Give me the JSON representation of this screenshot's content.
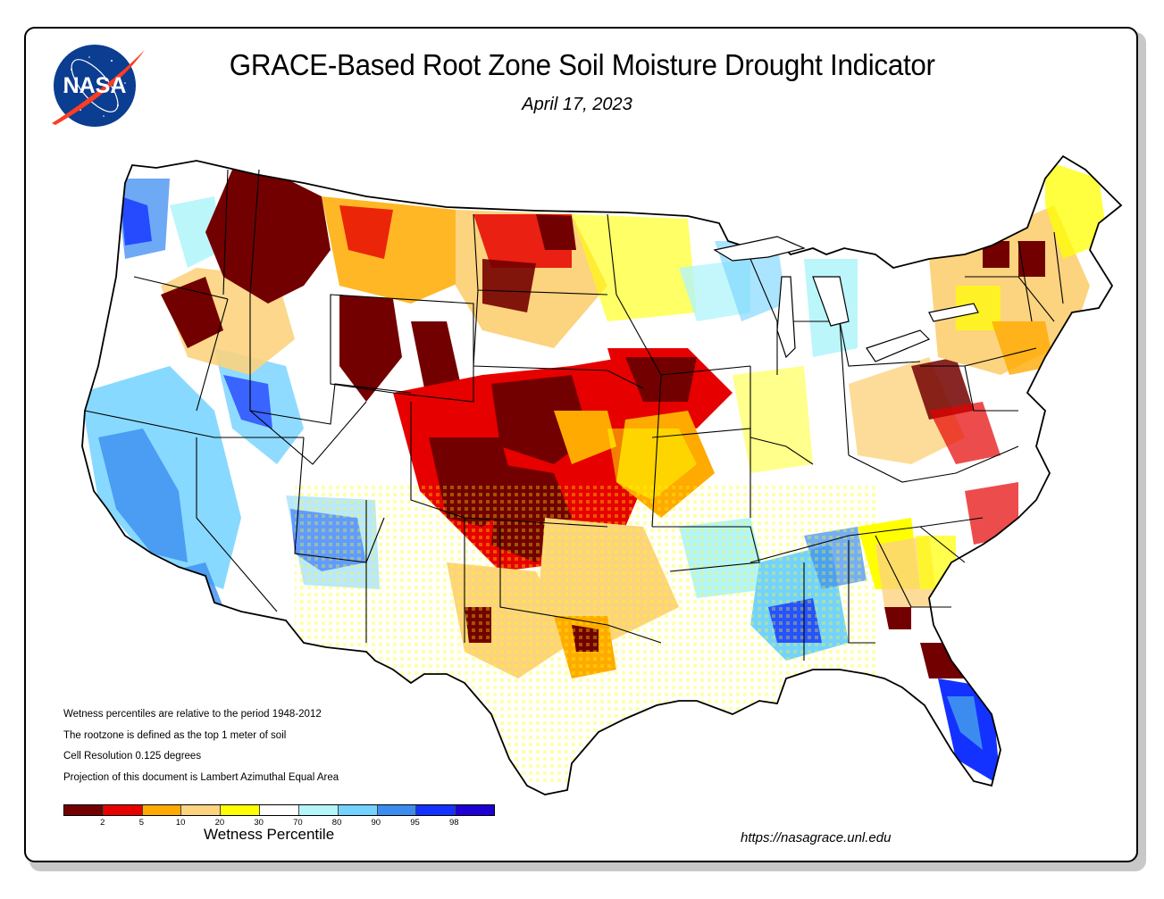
{
  "header": {
    "title": "GRACE-Based Root Zone Soil  Moisture Drought Indicator",
    "date": "April 17, 2023",
    "logo_text": "NASA"
  },
  "map": {
    "region": "Contiguous United States",
    "description": "Gridded wetness percentile map with state boundaries"
  },
  "notes": [
    "Wetness percentiles are relative to the period 1948-2012",
    "The rootzone is defined as the top 1 meter of soil",
    "Cell Resolution 0.125 degrees",
    "Projection of this document is Lambert Azimuthal Equal Area"
  ],
  "legend": {
    "title": "Wetness Percentile",
    "colors": [
      "#730000",
      "#e60000",
      "#ffaa00",
      "#fcd37f",
      "#ffff00",
      "#ffffff",
      "#b4f5fa",
      "#73d2ff",
      "#3c8cf0",
      "#1432ff",
      "#1e00d2"
    ],
    "ticks": [
      "2",
      "5",
      "10",
      "20",
      "30",
      "70",
      "80",
      "90",
      "95",
      "98"
    ]
  },
  "footer": {
    "url": "https://nasagrace.unl.edu"
  },
  "colors": {
    "frame_border": "#000000",
    "frame_shadow": "#c8c8c8",
    "nasa_blue": "#0b3d91",
    "nasa_red": "#fc3d21"
  }
}
